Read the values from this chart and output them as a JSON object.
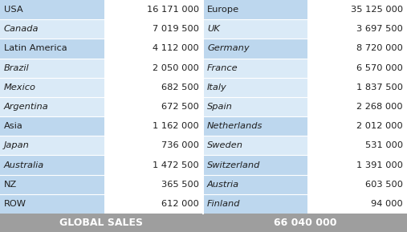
{
  "left_col": [
    [
      "USA",
      "16 171 000"
    ],
    [
      "Canada",
      "7 019 500"
    ],
    [
      "Latin America",
      "4 112 000"
    ],
    [
      "Brazil",
      "2 050 000"
    ],
    [
      "Mexico",
      "682 500"
    ],
    [
      "Argentina",
      "672 500"
    ],
    [
      "Asia",
      "1 162 000"
    ],
    [
      "Japan",
      "736 000"
    ],
    [
      "Australia",
      "1 472 500"
    ],
    [
      "NZ",
      "365 500"
    ],
    [
      "ROW",
      "612 000"
    ]
  ],
  "right_col": [
    [
      "Europe",
      "35 125 000"
    ],
    [
      "UK",
      "3 697 500"
    ],
    [
      "Germany",
      "8 720 000"
    ],
    [
      "France",
      "6 570 000"
    ],
    [
      "Italy",
      "1 837 500"
    ],
    [
      "Spain",
      "2 268 000"
    ],
    [
      "Netherlands",
      "2 012 000"
    ],
    [
      "Sweden",
      "531 000"
    ],
    [
      "Switzerland",
      "1 391 000"
    ],
    [
      "Austria",
      "603 500"
    ],
    [
      "Finland",
      "94 000"
    ]
  ],
  "footer_left": "GLOBAL SALES",
  "footer_right": "66 040 000",
  "row_colors": [
    "#bdd7ee",
    "#daeaf7",
    "#bdd7ee",
    "#daeaf7",
    "#daeaf7",
    "#daeaf7",
    "#bdd7ee",
    "#daeaf7",
    "#bdd7ee",
    "#bdd7ee",
    "#bdd7ee"
  ],
  "bg_footer": "#9e9e9e",
  "text_dark": "#1f1f1f",
  "text_white": "#ffffff",
  "left_italic": [
    false,
    true,
    false,
    true,
    true,
    true,
    false,
    true,
    true,
    false,
    false
  ],
  "right_italic": [
    false,
    true,
    true,
    true,
    true,
    true,
    true,
    true,
    true,
    true,
    true
  ],
  "divider_color": "#ffffff",
  "mid_divider_color": "#ffffff"
}
